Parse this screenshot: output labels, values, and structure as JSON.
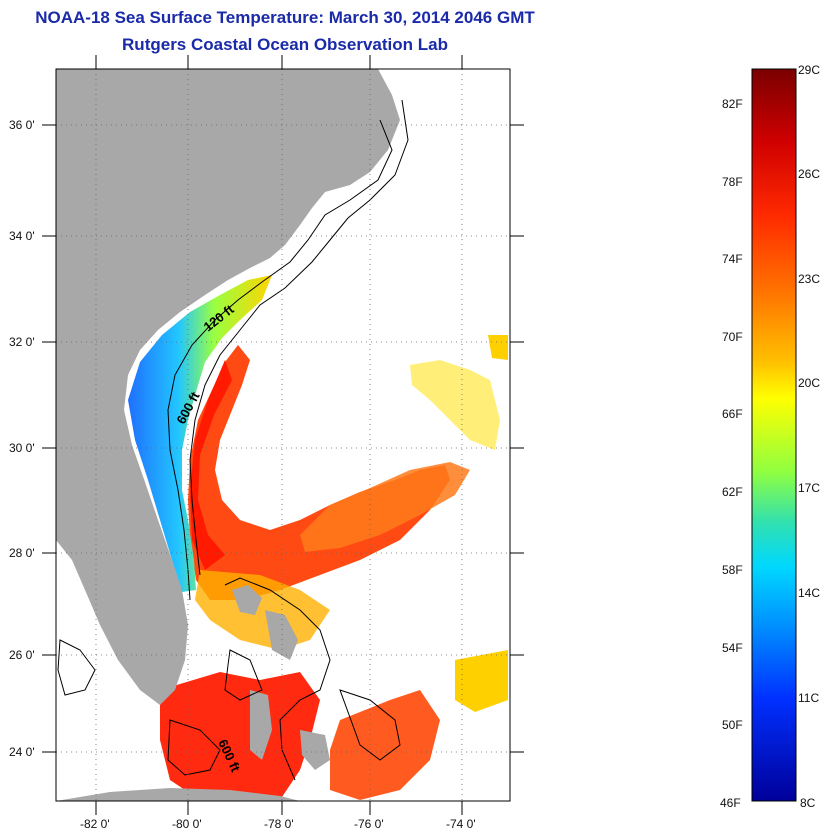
{
  "title": "NOAA-18 Sea Surface Temperature:  March 30, 2014 2046 GMT",
  "subtitle": "Rutgers Coastal Ocean Observation Lab",
  "map": {
    "lat_ticks": [
      "36 0'",
      "34 0'",
      "32 0'",
      "30 0'",
      "28 0'",
      "26 0'",
      "24 0'"
    ],
    "lon_ticks": [
      "-82 0'",
      "-80 0'",
      "-78 0'",
      "-76 0'",
      "-74 0'"
    ],
    "contours": [
      "120 ft",
      "600 ft",
      "600 ft"
    ],
    "land_color": "#a8a8a8",
    "cloud_color": "#ffffff"
  },
  "colorbar": {
    "fahrenheit": [
      "82F",
      "78F",
      "74F",
      "70F",
      "66F",
      "62F",
      "58F",
      "54F",
      "50F",
      "46F"
    ],
    "celsius": [
      "29C",
      "26C",
      "23C",
      "20C",
      "17C",
      "14C",
      "11C",
      "8C"
    ],
    "colors": [
      "#7a0000",
      "#d00000",
      "#ff3000",
      "#ff7a00",
      "#ffd000",
      "#ffff00",
      "#90ff40",
      "#30e0c0",
      "#00c8ff",
      "#0070ff",
      "#0020ff",
      "#00009a"
    ]
  }
}
